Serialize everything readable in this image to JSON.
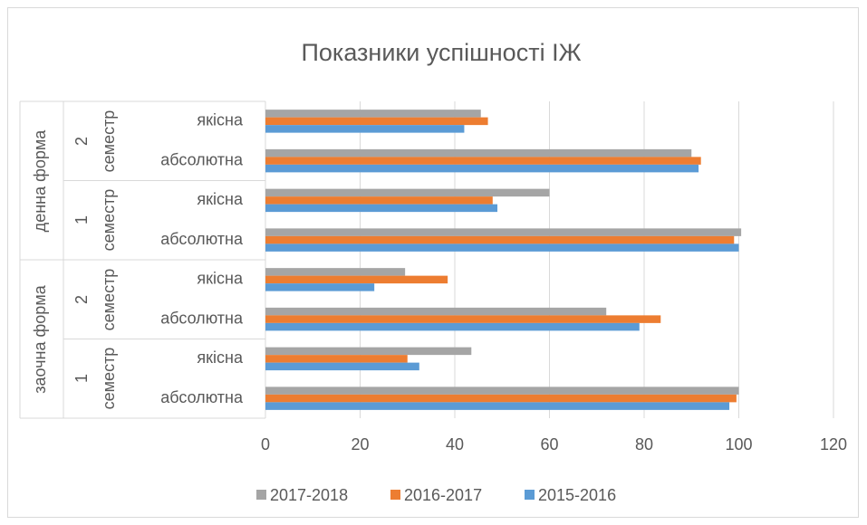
{
  "chart_data": {
    "type": "bar",
    "orientation": "horizontal",
    "title": "Показники успішності ІЖ",
    "groups": [
      {
        "label": "заочна форма",
        "subgroups": [
          {
            "label": "1 семестр",
            "categories": [
              "абсолютна",
              "якісна"
            ]
          },
          {
            "label": "2 семестр",
            "categories": [
              "абсолютна",
              "якісна"
            ]
          }
        ]
      },
      {
        "label": "денна форма",
        "subgroups": [
          {
            "label": "1 семестр",
            "categories": [
              "абсолютна",
              "якісна"
            ]
          },
          {
            "label": "2 семестр",
            "categories": [
              "абсолютна",
              "якісна"
            ]
          }
        ]
      }
    ],
    "series": [
      {
        "name": "2017-2018",
        "color": "#a5a5a5",
        "values": [
          100,
          43.5,
          72,
          29.5,
          100.5,
          60,
          90,
          45.5
        ]
      },
      {
        "name": "2016-2017",
        "color": "#ed7d31",
        "values": [
          99.5,
          30,
          83.5,
          38.5,
          99,
          48,
          92,
          47
        ]
      },
      {
        "name": "2015-2016",
        "color": "#5b9bd5",
        "values": [
          98,
          32.5,
          79,
          23,
          100,
          49,
          91.5,
          42
        ]
      }
    ],
    "xlim": [
      0,
      120
    ],
    "xticks": [
      0,
      20,
      40,
      60,
      80,
      100,
      120
    ],
    "grid": true,
    "legend": "bottom"
  }
}
